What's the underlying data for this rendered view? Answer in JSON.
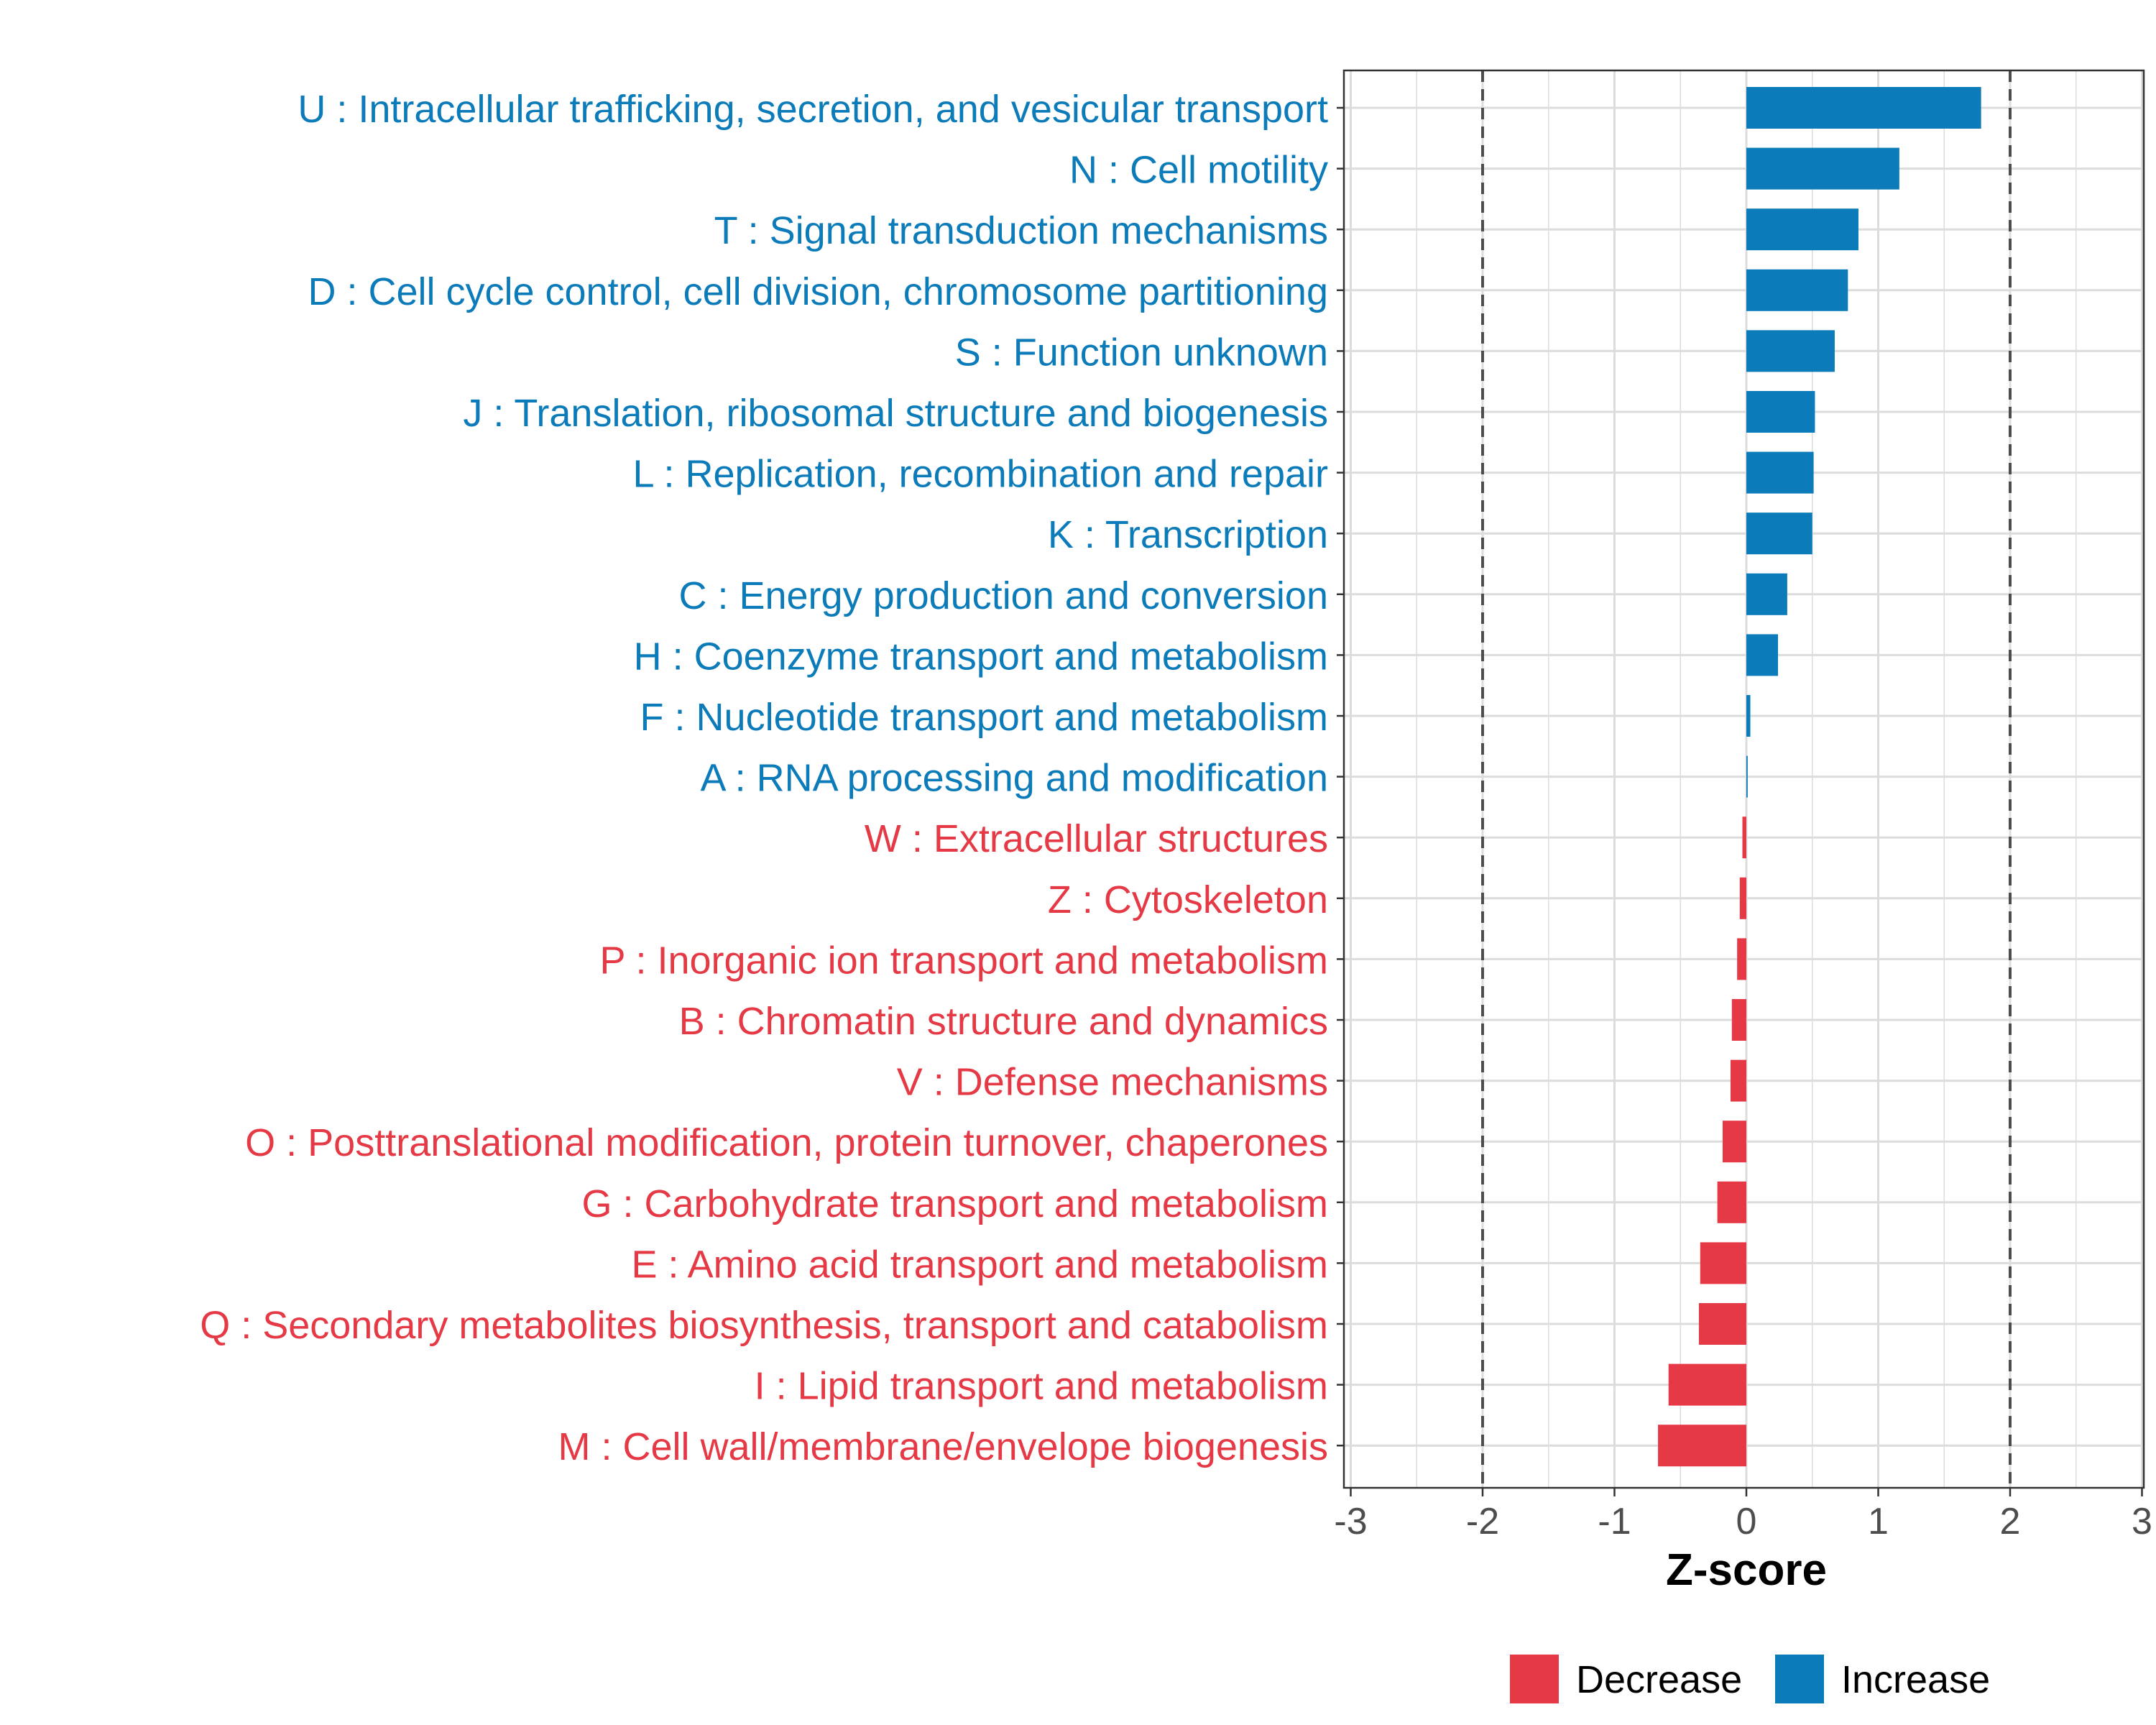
{
  "chart_data": {
    "type": "bar",
    "orientation": "horizontal",
    "title": "",
    "xlabel": "Z-score",
    "ylabel": "",
    "xlim": [
      -3,
      3
    ],
    "x_ticks": [
      "-3",
      "-2",
      "-1",
      "0",
      "1",
      "2",
      "3"
    ],
    "reference_lines": [
      -2,
      2
    ],
    "categories": [
      "U : Intracellular trafficking, secretion, and vesicular transport",
      "N : Cell motility",
      "T : Signal transduction mechanisms",
      "D : Cell cycle control, cell division, chromosome partitioning",
      "S : Function unknown",
      "J : Translation, ribosomal structure and biogenesis",
      "L : Replication, recombination and repair",
      "K : Transcription",
      "C : Energy production and conversion",
      "H : Coenzyme transport and metabolism",
      "F : Nucleotide transport and metabolism",
      "A : RNA processing and modification",
      "W : Extracellular structures",
      "Z : Cytoskeleton",
      "P : Inorganic ion transport and metabolism",
      "B : Chromatin structure and dynamics",
      "V : Defense mechanisms",
      "O : Posttranslational modification, protein turnover, chaperones",
      "G : Carbohydrate transport and metabolism",
      "E : Amino acid transport and metabolism",
      "Q : Secondary metabolites biosynthesis, transport and catabolism",
      "I : Lipid transport and metabolism",
      "M : Cell wall/membrane/envelope biogenesis"
    ],
    "values": [
      1.78,
      1.16,
      0.85,
      0.77,
      0.67,
      0.52,
      0.51,
      0.5,
      0.31,
      0.24,
      0.03,
      0.01,
      -0.03,
      -0.05,
      -0.07,
      -0.11,
      -0.12,
      -0.18,
      -0.22,
      -0.35,
      -0.36,
      -0.59,
      -0.67
    ],
    "legend": {
      "position": "bottom",
      "entries": [
        {
          "label": "Decrease",
          "color": "#e63946"
        },
        {
          "label": "Increase",
          "color": "#0c7bb9"
        }
      ]
    },
    "colors": {
      "increase": "#0c7bb9",
      "decrease": "#e63946",
      "grid": "#dcdcdc",
      "reference_line": "#4d4d4d",
      "axis_text": "#4d4d4d"
    }
  }
}
